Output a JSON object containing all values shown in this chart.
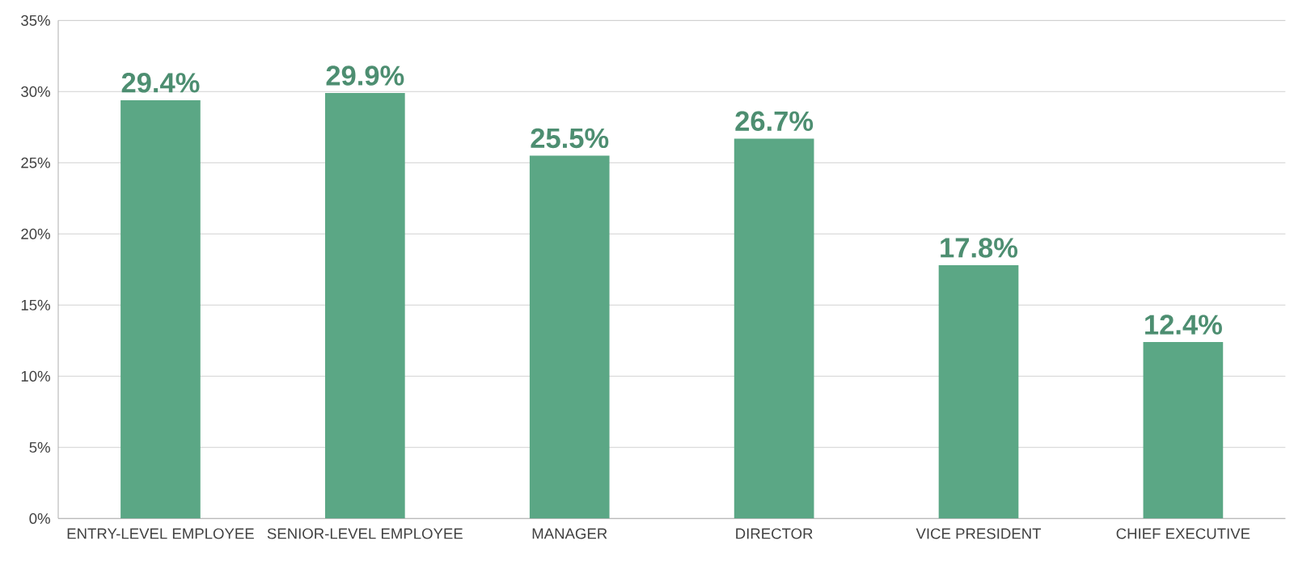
{
  "chart_data": {
    "type": "bar",
    "categories": [
      "ENTRY-LEVEL EMPLOYEE",
      "SENIOR-LEVEL EMPLOYEE",
      "MANAGER",
      "DIRECTOR",
      "VICE PRESIDENT",
      "CHIEF EXECUTIVE"
    ],
    "values": [
      29.4,
      29.9,
      25.5,
      26.7,
      17.8,
      12.4
    ],
    "color": "#5ba785",
    "value_labels": [
      "29.4%",
      "29.9%",
      "25.5%",
      "26.7%",
      "17.8%",
      "12.4%"
    ],
    "ylim": [
      0,
      35
    ],
    "yticks": [
      {
        "value": 0,
        "label": "0%"
      },
      {
        "value": 5,
        "label": "5%"
      },
      {
        "value": 10,
        "label": "10%"
      },
      {
        "value": 15,
        "label": "15%"
      },
      {
        "value": 20,
        "label": "20%"
      },
      {
        "value": 25,
        "label": "25%"
      },
      {
        "value": 30,
        "label": "30%"
      },
      {
        "value": 35,
        "label": "35%"
      }
    ],
    "grid": "y"
  }
}
